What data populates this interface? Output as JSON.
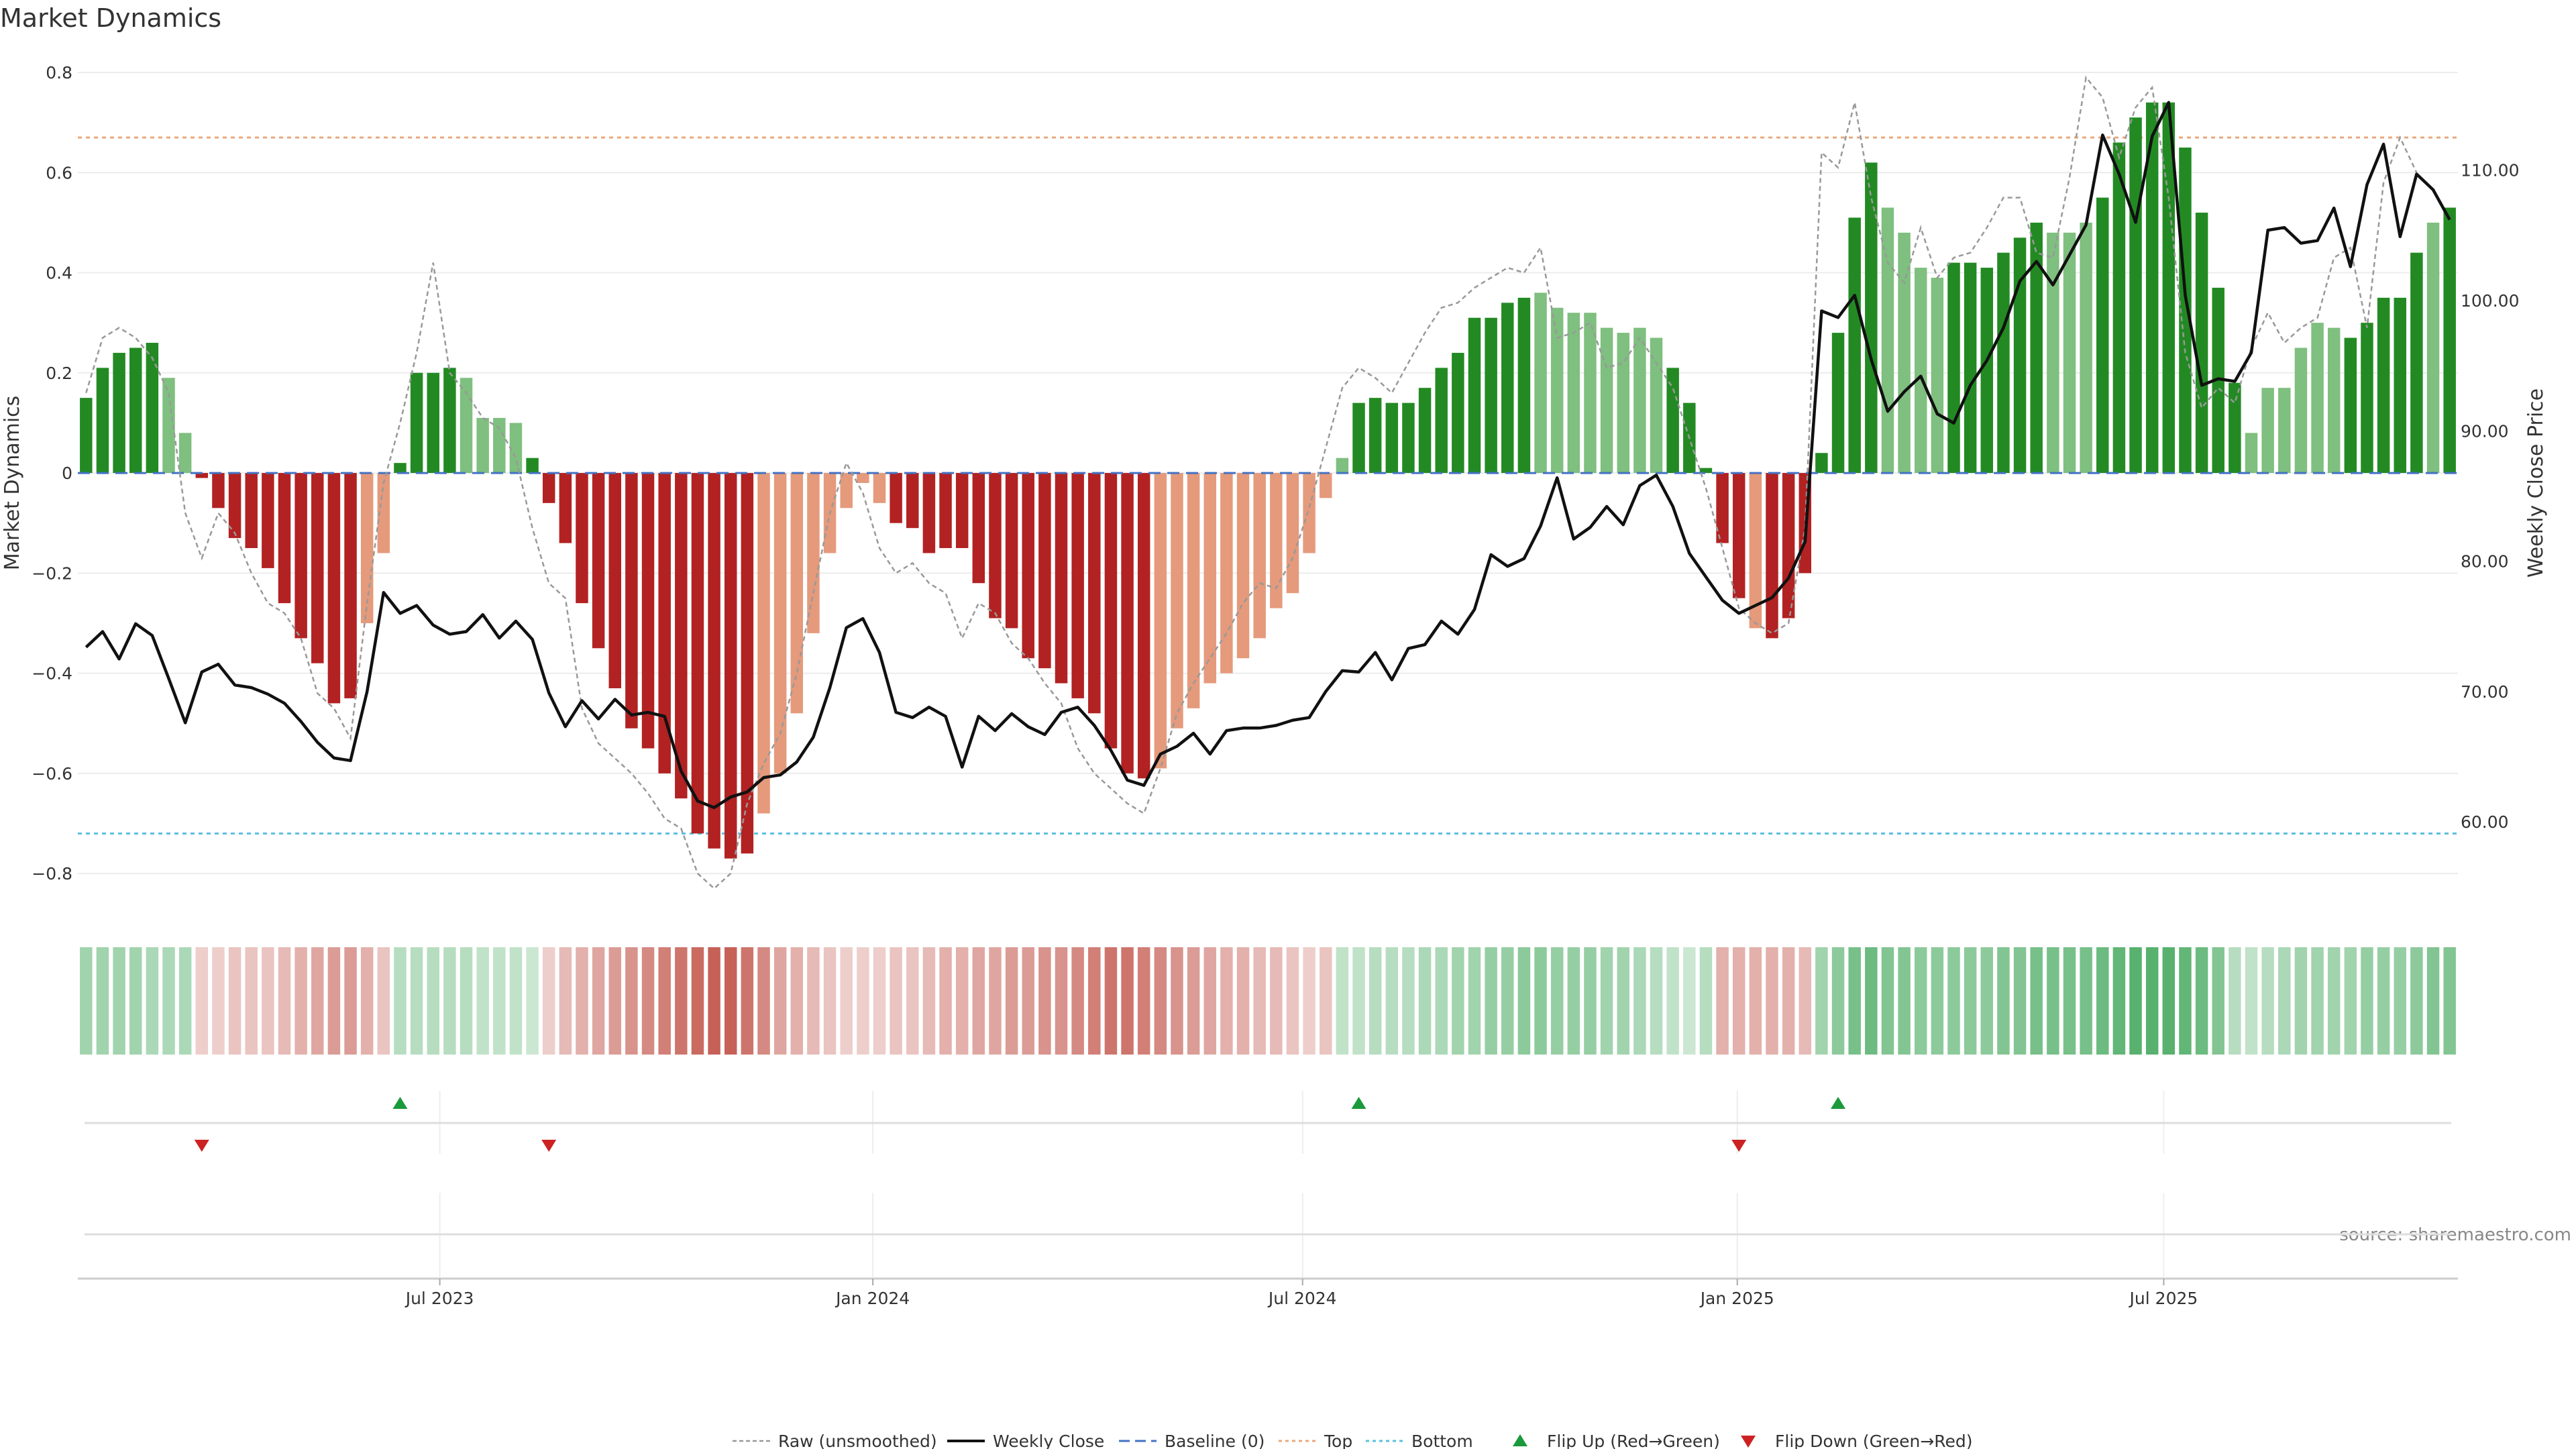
{
  "chart_data": {
    "type": "bar",
    "title": "Market Dynamics",
    "ylabel": "Market Dynamics",
    "y2label": "Weekly Close Price",
    "ylim": [
      -0.84,
      0.8
    ],
    "y2lim": [
      54.5,
      117.5
    ],
    "yticks": [
      "0.8",
      "0.6",
      "0.4",
      "0.2",
      "0",
      "−0.2",
      "−0.4",
      "−0.6",
      "−0.8"
    ],
    "y2ticks": [
      "110.00",
      "100.00",
      "90.00",
      "80.00",
      "70.00",
      "60.00"
    ],
    "xticks": [
      "Jul 2023",
      "Jan 2024",
      "Jul 2024",
      "Jan 2025",
      "Jul 2025"
    ],
    "xtick_index": [
      21.4,
      47.6,
      73.6,
      99.9,
      125.7
    ],
    "top_level": 0.67,
    "bottom_level": -0.72,
    "source": "source: sharemaestro.com",
    "colors": {
      "green_strong": "#238a23",
      "green_light": "#7fbf7f",
      "red_strong": "#b22222",
      "red_light": "#e59a7c",
      "close": "#111111",
      "raw": "#999999",
      "baseline": "#4472c4",
      "top": "#e8a87c",
      "bottom": "#5bc0de",
      "flip_up": "#1a9a3a",
      "flip_down": "#cc2222"
    },
    "momentum": [
      0.15,
      0.21,
      0.24,
      0.25,
      0.26,
      0.19,
      0.08,
      -0.01,
      -0.07,
      -0.13,
      -0.15,
      -0.19,
      -0.26,
      -0.33,
      -0.38,
      -0.46,
      -0.45,
      -0.3,
      -0.16,
      0.02,
      0.2,
      0.2,
      0.21,
      0.19,
      0.11,
      0.11,
      0.1,
      0.03,
      -0.06,
      -0.14,
      -0.26,
      -0.35,
      -0.43,
      -0.51,
      -0.55,
      -0.6,
      -0.65,
      -0.72,
      -0.75,
      -0.77,
      -0.76,
      -0.68,
      -0.6,
      -0.48,
      -0.32,
      -0.16,
      -0.07,
      -0.02,
      -0.06,
      -0.1,
      -0.11,
      -0.16,
      -0.15,
      -0.15,
      -0.22,
      -0.29,
      -0.31,
      -0.37,
      -0.39,
      -0.42,
      -0.45,
      -0.48,
      -0.55,
      -0.6,
      -0.61,
      -0.59,
      -0.51,
      -0.47,
      -0.42,
      -0.4,
      -0.37,
      -0.33,
      -0.27,
      -0.24,
      -0.16,
      -0.05,
      0.03,
      0.14,
      0.15,
      0.14,
      0.14,
      0.17,
      0.21,
      0.24,
      0.31,
      0.31,
      0.34,
      0.35,
      0.36,
      0.33,
      0.32,
      0.32,
      0.29,
      0.28,
      0.29,
      0.27,
      0.21,
      0.14,
      0.01,
      -0.14,
      -0.25,
      -0.31,
      -0.33,
      -0.29,
      -0.2,
      0.04,
      0.28,
      0.51,
      0.62,
      0.53,
      0.48,
      0.41,
      0.39,
      0.42,
      0.42,
      0.41,
      0.44,
      0.47,
      0.5,
      0.48,
      0.48,
      0.5,
      0.55,
      0.66,
      0.71,
      0.74,
      0.74,
      0.65,
      0.52,
      0.37,
      0.18,
      0.08,
      0.17,
      0.17,
      0.25,
      0.3,
      0.29,
      0.27,
      0.3,
      0.35,
      0.35,
      0.44,
      0.5,
      0.53
    ],
    "shades": "SSSSSLLSSSSSSSSSSLLSSSSLLLLSSSSSSSSSSSSSSLLLLLLLLSSSSSSSSSSSSSSSSLLLLLLLLLLLLSSSSSSSSSSSLLLLLLLLSSSSSLSSSSSSSLLLLSSSSSSLLLSSSSSSSSSLLLLLLSSSSSLSSSSS",
    "close": [
      73.4,
      74.6,
      72.5,
      75.2,
      74.3,
      71.0,
      67.6,
      71.5,
      72.1,
      70.5,
      70.3,
      69.8,
      69.1,
      67.7,
      66.1,
      64.9,
      64.7,
      70.0,
      77.6,
      76.0,
      76.6,
      75.1,
      74.4,
      74.6,
      75.9,
      74.1,
      75.4,
      74.0,
      69.9,
      67.3,
      69.3,
      67.9,
      69.4,
      68.2,
      68.4,
      68.1,
      63.9,
      61.6,
      61.1,
      61.9,
      62.3,
      63.4,
      63.6,
      64.6,
      66.5,
      70.3,
      74.9,
      75.6,
      73.0,
      68.4,
      68.0,
      68.8,
      68.1,
      64.2,
      68.1,
      67.0,
      68.3,
      67.3,
      66.7,
      68.4,
      68.8,
      67.4,
      65.5,
      63.2,
      62.8,
      65.2,
      65.8,
      66.8,
      65.2,
      67.0,
      67.2,
      67.2,
      67.4,
      67.8,
      68.0,
      70.0,
      71.6,
      71.5,
      73.0,
      70.9,
      73.3,
      73.6,
      75.4,
      74.4,
      76.3,
      80.5,
      79.6,
      80.2,
      82.7,
      86.4,
      81.7,
      82.6,
      84.2,
      82.8,
      85.8,
      86.6,
      84.2,
      80.6,
      78.8,
      77.0,
      76.0,
      76.6,
      77.2,
      78.7,
      81.5,
      99.2,
      98.7,
      100.4,
      95.5,
      91.5,
      93.0,
      94.2,
      91.3,
      90.6,
      93.5,
      95.4,
      97.9,
      101.5,
      103.0,
      101.2,
      103.5,
      105.8,
      112.7,
      109.7,
      106.0,
      112.6,
      115.2,
      100.4,
      93.5,
      94.0,
      93.8,
      96.0,
      105.4,
      105.6,
      104.4,
      104.6,
      107.1,
      102.6,
      108.9,
      112.0,
      104.9,
      109.7,
      108.5,
      106.2
    ],
    "raw": [
      0.16,
      0.27,
      0.29,
      0.27,
      0.23,
      0.16,
      -0.08,
      -0.17,
      -0.08,
      -0.12,
      -0.2,
      -0.26,
      -0.28,
      -0.33,
      -0.44,
      -0.47,
      -0.53,
      -0.26,
      -0.02,
      0.1,
      0.24,
      0.42,
      0.2,
      0.16,
      0.11,
      0.09,
      0.03,
      -0.11,
      -0.22,
      -0.25,
      -0.47,
      -0.54,
      -0.57,
      -0.6,
      -0.64,
      -0.69,
      -0.71,
      -0.8,
      -0.83,
      -0.8,
      -0.66,
      -0.58,
      -0.52,
      -0.4,
      -0.24,
      -0.08,
      0.02,
      -0.04,
      -0.15,
      -0.2,
      -0.18,
      -0.22,
      -0.24,
      -0.33,
      -0.26,
      -0.28,
      -0.34,
      -0.37,
      -0.42,
      -0.46,
      -0.55,
      -0.6,
      -0.63,
      -0.66,
      -0.68,
      -0.59,
      -0.48,
      -0.42,
      -0.37,
      -0.32,
      -0.26,
      -0.22,
      -0.23,
      -0.17,
      -0.07,
      0.05,
      0.17,
      0.21,
      0.19,
      0.16,
      0.22,
      0.28,
      0.33,
      0.34,
      0.37,
      0.39,
      0.41,
      0.4,
      0.45,
      0.27,
      0.28,
      0.3,
      0.21,
      0.22,
      0.27,
      0.22,
      0.17,
      0.07,
      -0.03,
      -0.15,
      -0.27,
      -0.3,
      -0.32,
      -0.3,
      -0.11,
      0.64,
      0.61,
      0.74,
      0.55,
      0.42,
      0.38,
      0.49,
      0.39,
      0.43,
      0.44,
      0.49,
      0.55,
      0.55,
      0.44,
      0.43,
      0.59,
      0.79,
      0.75,
      0.63,
      0.73,
      0.77,
      0.55,
      0.24,
      0.13,
      0.17,
      0.14,
      0.25,
      0.32,
      0.26,
      0.29,
      0.31,
      0.43,
      0.45,
      0.29,
      0.58,
      0.67,
      0.6
    ],
    "heat_alpha": [
      0.45,
      0.45,
      0.45,
      0.45,
      0.4,
      0.4,
      0.4,
      0.25,
      0.25,
      0.3,
      0.3,
      0.3,
      0.35,
      0.4,
      0.45,
      0.5,
      0.5,
      0.4,
      0.3,
      0.35,
      0.35,
      0.35,
      0.35,
      0.35,
      0.3,
      0.3,
      0.3,
      0.25,
      0.25,
      0.35,
      0.4,
      0.45,
      0.5,
      0.55,
      0.6,
      0.65,
      0.7,
      0.75,
      0.8,
      0.8,
      0.7,
      0.6,
      0.45,
      0.4,
      0.35,
      0.3,
      0.25,
      0.25,
      0.25,
      0.3,
      0.3,
      0.35,
      0.4,
      0.4,
      0.45,
      0.45,
      0.5,
      0.5,
      0.55,
      0.55,
      0.6,
      0.65,
      0.7,
      0.7,
      0.65,
      0.6,
      0.55,
      0.5,
      0.45,
      0.4,
      0.4,
      0.35,
      0.35,
      0.3,
      0.25,
      0.3,
      0.3,
      0.3,
      0.35,
      0.35,
      0.35,
      0.4,
      0.4,
      0.45,
      0.45,
      0.5,
      0.5,
      0.55,
      0.55,
      0.5,
      0.5,
      0.5,
      0.45,
      0.45,
      0.4,
      0.35,
      0.3,
      0.25,
      0.35,
      0.4,
      0.4,
      0.4,
      0.4,
      0.4,
      0.35,
      0.45,
      0.55,
      0.65,
      0.7,
      0.6,
      0.6,
      0.55,
      0.55,
      0.55,
      0.55,
      0.55,
      0.6,
      0.6,
      0.65,
      0.65,
      0.65,
      0.65,
      0.7,
      0.75,
      0.8,
      0.8,
      0.8,
      0.75,
      0.7,
      0.6,
      0.35,
      0.3,
      0.35,
      0.4,
      0.45,
      0.45,
      0.45,
      0.45,
      0.5,
      0.5,
      0.5,
      0.55,
      0.6,
      0.6
    ],
    "flip_up_index": [
      19,
      77,
      106
    ],
    "flip_down_index": [
      7,
      28,
      100
    ],
    "legend": [
      {
        "key": "raw",
        "label": "Raw (unsmoothed)"
      },
      {
        "key": "close",
        "label": "Weekly Close"
      },
      {
        "key": "baseline",
        "label": "Baseline (0)"
      },
      {
        "key": "top",
        "label": "Top"
      },
      {
        "key": "bottom",
        "label": "Bottom"
      },
      {
        "key": "flip_up",
        "label": "Flip Up (Red→Green)"
      },
      {
        "key": "flip_down",
        "label": "Flip Down (Green→Red)"
      }
    ]
  }
}
